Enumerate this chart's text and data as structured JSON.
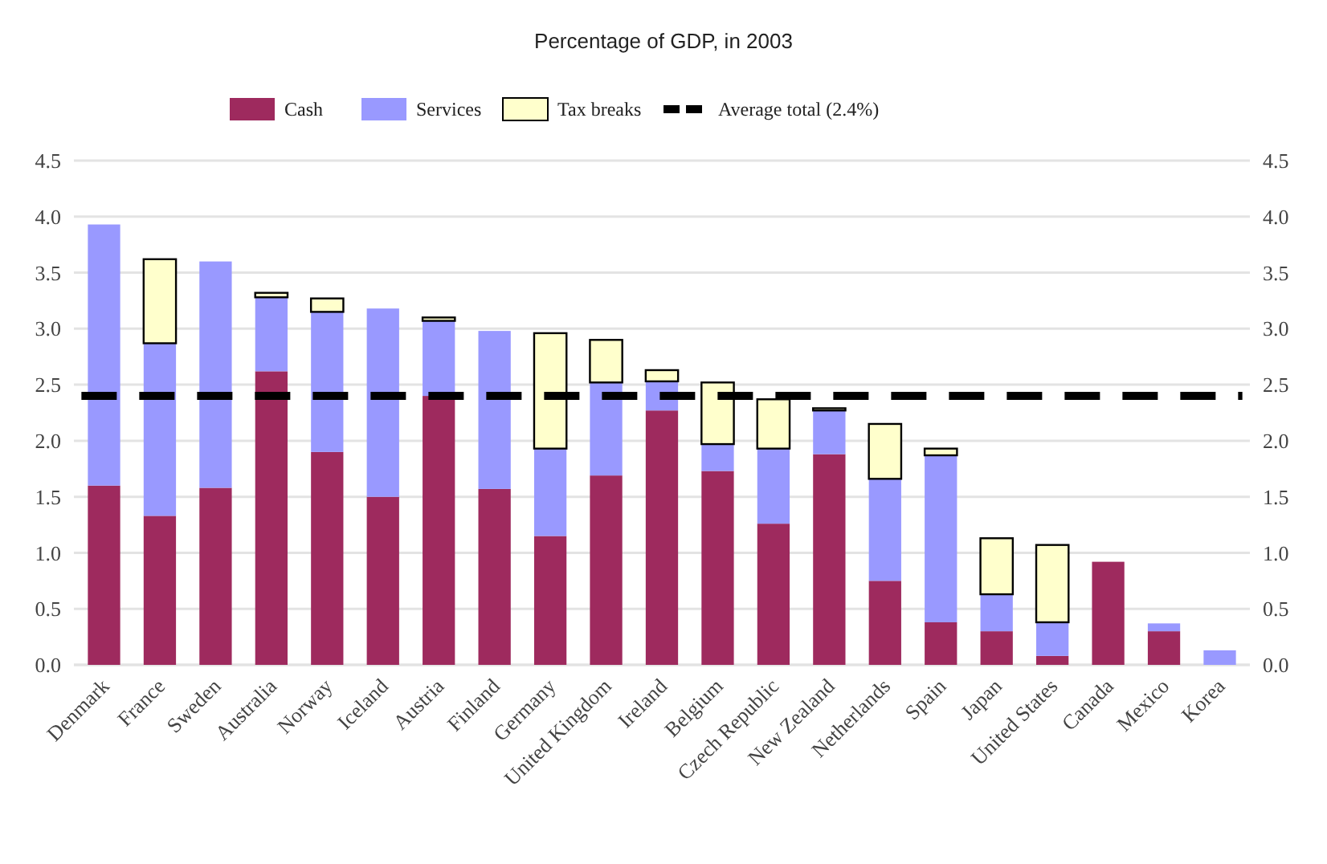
{
  "chart_data": {
    "type": "bar",
    "title": "Percentage of GDP, in 2003",
    "stacked": true,
    "categories": [
      "Denmark",
      "France",
      "Sweden",
      "Australia",
      "Norway",
      "Iceland",
      "Austria",
      "Finland",
      "Germany",
      "United Kingdom",
      "Ireland",
      "Belgium",
      "Czech Republic",
      "New Zealand",
      "Netherlands",
      "Spain",
      "Japan",
      "United States",
      "Canada",
      "Mexico",
      "Korea"
    ],
    "series": [
      {
        "name": "Cash",
        "color": "#9e2a5e",
        "values": [
          1.6,
          1.33,
          1.58,
          2.62,
          1.9,
          1.5,
          2.4,
          1.57,
          1.15,
          1.69,
          2.27,
          1.73,
          1.26,
          1.88,
          0.75,
          0.38,
          0.3,
          0.08,
          0.92,
          0.3,
          0
        ]
      },
      {
        "name": "Services",
        "color": "#9999ff",
        "values": [
          2.33,
          1.54,
          2.02,
          0.66,
          1.25,
          1.68,
          0.67,
          1.41,
          0.78,
          0.83,
          0.26,
          0.24,
          0.67,
          0.39,
          0.91,
          1.49,
          0.33,
          0.3,
          0,
          0.07,
          0.13
        ]
      },
      {
        "name": "Tax breaks",
        "color": "#ffffcc",
        "values": [
          0,
          0.75,
          0,
          0.04,
          0.12,
          0,
          0.03,
          0,
          1.03,
          0.38,
          0.1,
          0.55,
          0.44,
          0.02,
          0.49,
          0.06,
          0.5,
          0.69,
          0,
          0,
          0
        ]
      }
    ],
    "ref_lines": [
      {
        "axis": "y",
        "value": 2.4,
        "label": "Average total (2.4%)",
        "color": "#000000",
        "line_style": "dashed"
      }
    ],
    "ylim": [
      0,
      4.5
    ],
    "yticks": [
      {
        "value": 0,
        "label": "0.0"
      },
      {
        "value": 0.5,
        "label": "0.5"
      },
      {
        "value": 1,
        "label": "1.0"
      },
      {
        "value": 1.5,
        "label": "1.5"
      },
      {
        "value": 2,
        "label": "2.0"
      },
      {
        "value": 2.5,
        "label": "2.5"
      },
      {
        "value": 3,
        "label": "3.0"
      },
      {
        "value": 3.5,
        "label": "3.5"
      },
      {
        "value": 4,
        "label": "4.0"
      },
      {
        "value": 4.5,
        "label": "4.5"
      }
    ],
    "y2lim": [
      0,
      4.5
    ],
    "y2ticks": [
      {
        "value": 0,
        "label": "0.0"
      },
      {
        "value": 0.5,
        "label": "0.5"
      },
      {
        "value": 1,
        "label": "1.0"
      },
      {
        "value": 1.5,
        "label": "1.5"
      },
      {
        "value": 2,
        "label": "2.0"
      },
      {
        "value": 2.5,
        "label": "2.5"
      },
      {
        "value": 3,
        "label": "3.0"
      },
      {
        "value": 3.5,
        "label": "3.5"
      },
      {
        "value": 4,
        "label": "4.0"
      },
      {
        "value": 4.5,
        "label": "4.5"
      }
    ],
    "grid": "y",
    "legend": "top"
  }
}
